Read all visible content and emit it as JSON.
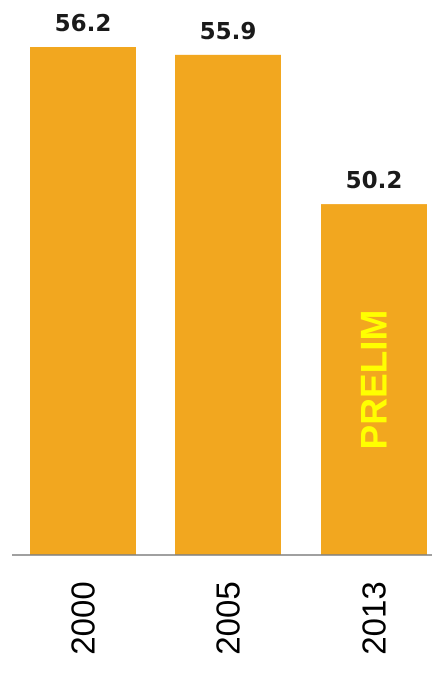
{
  "chart_data": {
    "type": "bar",
    "categories": [
      "2000",
      "2005",
      "2013"
    ],
    "values": [
      56.2,
      55.9,
      50.2
    ],
    "value_labels": [
      "56.2",
      "55.9",
      "50.2"
    ],
    "annotations": [
      {
        "category": "2013",
        "text": "PRELIM",
        "color": "#ffff00"
      }
    ],
    "title": "",
    "xlabel": "",
    "ylabel": "",
    "ylim": [
      36.8,
      56.2
    ],
    "grid": false,
    "legend": "none",
    "bar_color": "#f2a71f",
    "axis_color": "#808080"
  }
}
